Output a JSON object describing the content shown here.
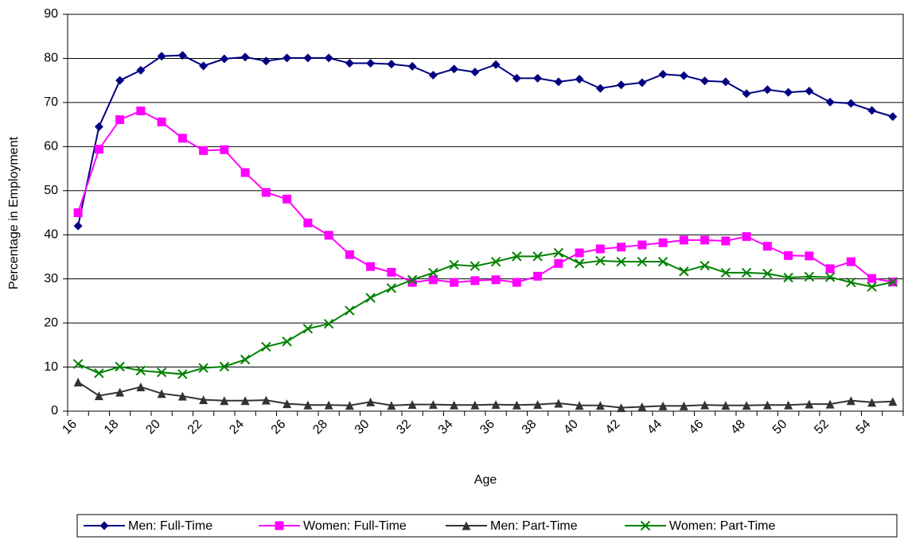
{
  "chart_data": {
    "type": "line",
    "x_label": "Age",
    "y_label": "Percentage in Employment",
    "categories": [
      "16",
      null,
      "18",
      null,
      "20",
      null,
      "22",
      null,
      "24",
      null,
      "26",
      null,
      "28",
      null,
      "30",
      null,
      "32",
      null,
      "34",
      null,
      "36",
      null,
      "38",
      null,
      "40",
      null,
      "42",
      null,
      "44",
      null,
      "46",
      null,
      "48",
      null,
      "50",
      null,
      "52",
      null,
      "54",
      null
    ],
    "series": [
      {
        "name": "Men: Full-Time",
        "color": "#000080",
        "marker": "diamond",
        "values": [
          42,
          64.5,
          75,
          77.3,
          80.5,
          80.7,
          78.3,
          79.9,
          80.3,
          79.4,
          80.1,
          80.1,
          80.1,
          78.9,
          78.9,
          78.7,
          78.2,
          76.2,
          77.6,
          76.9,
          78.6,
          75.5,
          75.5,
          74.7,
          75.3,
          73.2,
          74,
          74.5,
          76.4,
          76.1,
          74.9,
          74.7,
          72,
          72.9,
          72.3,
          72.6,
          70.1,
          69.8,
          68.2,
          66.8
        ]
      },
      {
        "name": "Women: Full-Time",
        "color": "#ff00ff",
        "marker": "square",
        "values": [
          45,
          59.4,
          66.1,
          68.1,
          65.6,
          61.9,
          59.1,
          59.3,
          54.1,
          49.6,
          48.1,
          42.7,
          39.9,
          35.5,
          32.8,
          31.5,
          29.2,
          29.8,
          29.2,
          29.6,
          29.8,
          29.2,
          30.6,
          33.5,
          35.9,
          36.8,
          37.2,
          37.7,
          38.2,
          38.8,
          38.8,
          38.6,
          39.6,
          37.4,
          35.3,
          35.2,
          32.3,
          33.9,
          30.1,
          29.3
        ]
      },
      {
        "name": "Men: Part-Time",
        "color": "#333333",
        "marker": "triangle",
        "values": [
          6.6,
          3.5,
          4.3,
          5.5,
          4,
          3.4,
          2.6,
          2.4,
          2.4,
          2.5,
          1.7,
          1.4,
          1.4,
          1.3,
          2.1,
          1.3,
          1.5,
          1.5,
          1.4,
          1.4,
          1.5,
          1.4,
          1.5,
          1.8,
          1.3,
          1.3,
          0.8,
          1.0,
          1.2,
          1.2,
          1.4,
          1.3,
          1.3,
          1.4,
          1.4,
          1.6,
          1.6,
          2.4,
          2.0,
          2.2
        ]
      },
      {
        "name": "Women: Part-Time",
        "color": "#008000",
        "marker": "x",
        "values": [
          10.7,
          8.6,
          10.1,
          9.2,
          8.8,
          8.4,
          9.8,
          10.1,
          11.7,
          14.6,
          15.8,
          18.7,
          19.8,
          22.8,
          25.7,
          27.9,
          29.8,
          31.4,
          33.2,
          32.9,
          33.9,
          35.1,
          35.1,
          35.9,
          33.5,
          34.1,
          33.9,
          33.9,
          33.9,
          31.7,
          33,
          31.4,
          31.4,
          31.2,
          30.3,
          30.5,
          30.4,
          29.2,
          28.2,
          29.3
        ]
      }
    ],
    "ylim": [
      0,
      90
    ],
    "yticks": [
      0,
      10,
      20,
      30,
      40,
      50,
      60,
      70,
      80,
      90
    ],
    "grid": true,
    "legend": "bottom"
  }
}
